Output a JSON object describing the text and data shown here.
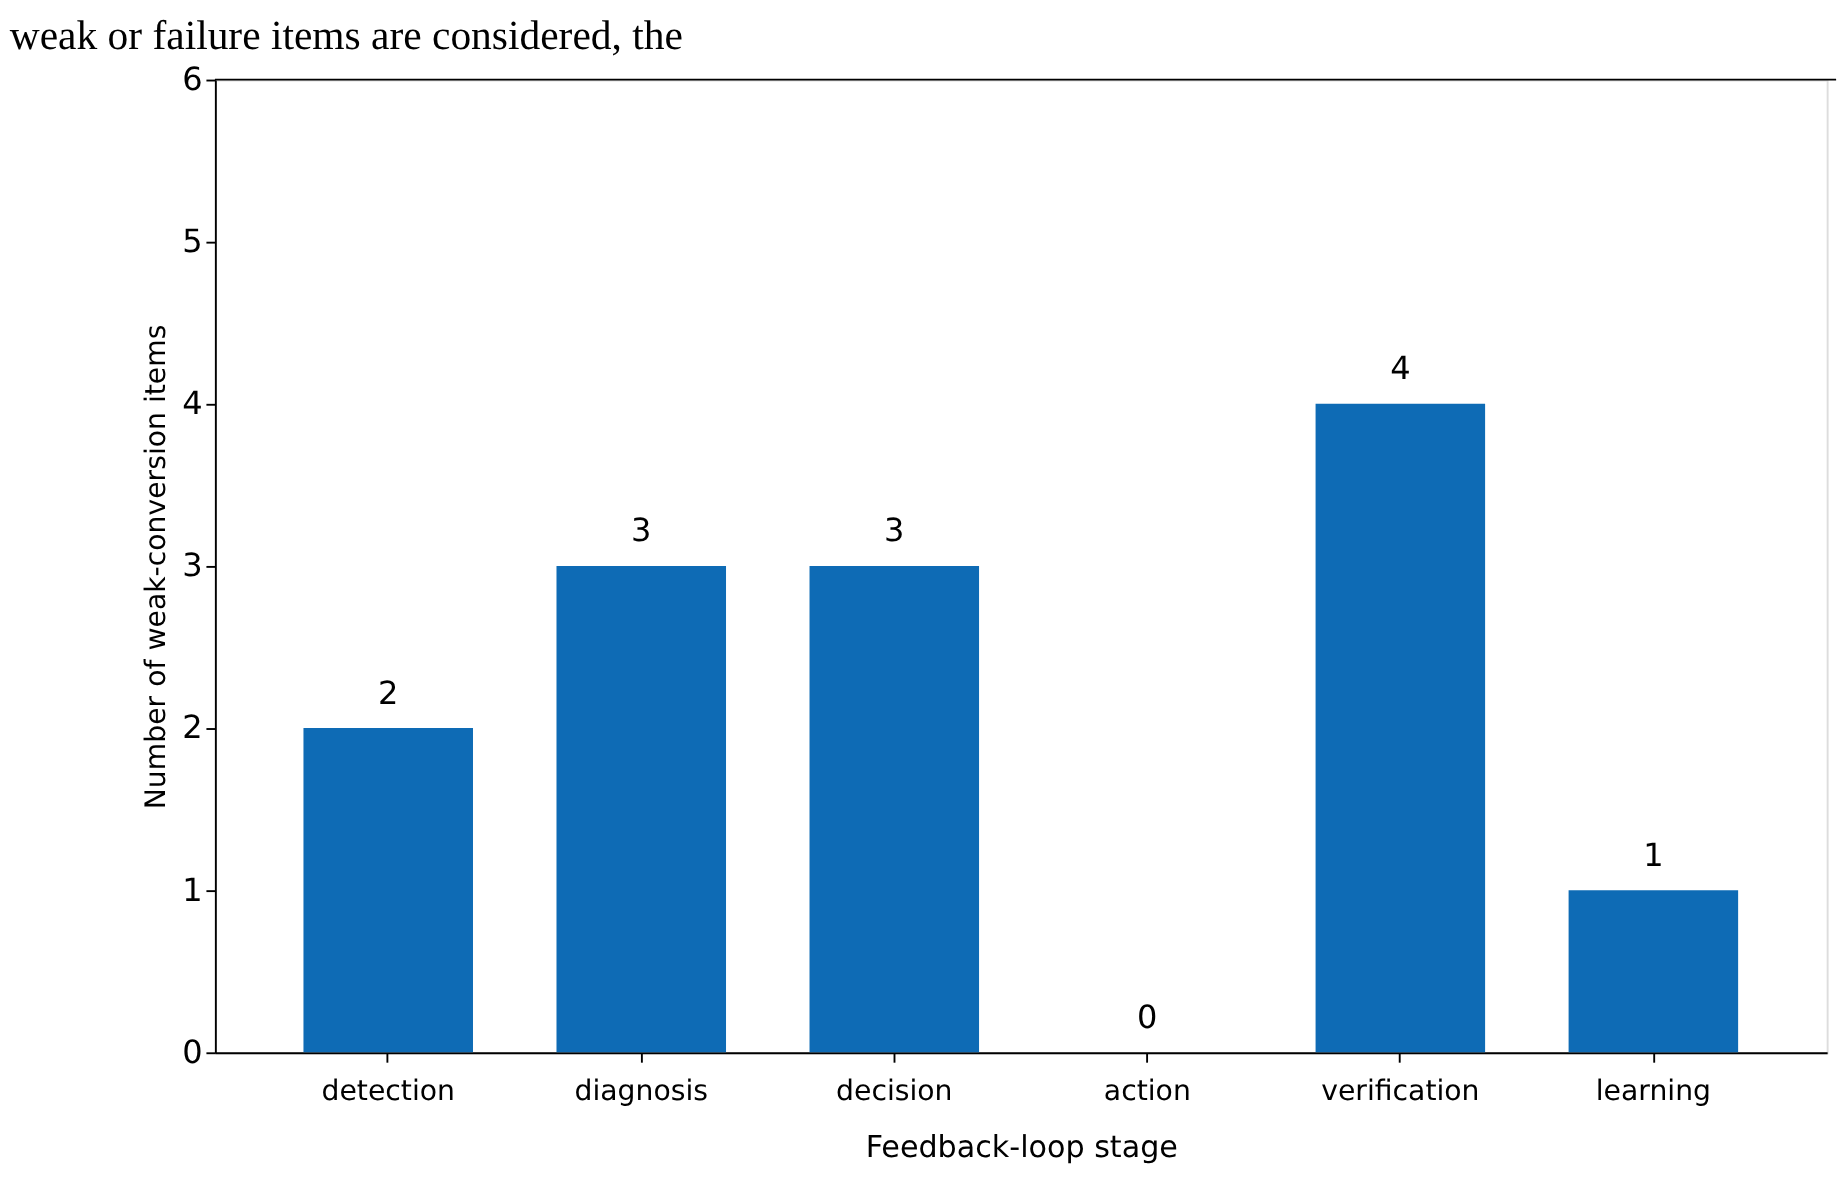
{
  "chart_data": {
    "type": "bar",
    "xlabel": "Feedback-loop stage",
    "ylabel": "Number of weak-conversion items",
    "categories": [
      "detection",
      "diagnosis",
      "decision",
      "action",
      "verification",
      "learning"
    ],
    "values": [
      2,
      3,
      3,
      0,
      4,
      1
    ],
    "color": "#0e6bb5",
    "ylim": [
      0,
      6
    ],
    "yticks": [
      0,
      1,
      2,
      3,
      4,
      5,
      6
    ],
    "grid": false,
    "data_labels": true,
    "annotations": [
      "weak or failure items are considered, the"
    ]
  }
}
